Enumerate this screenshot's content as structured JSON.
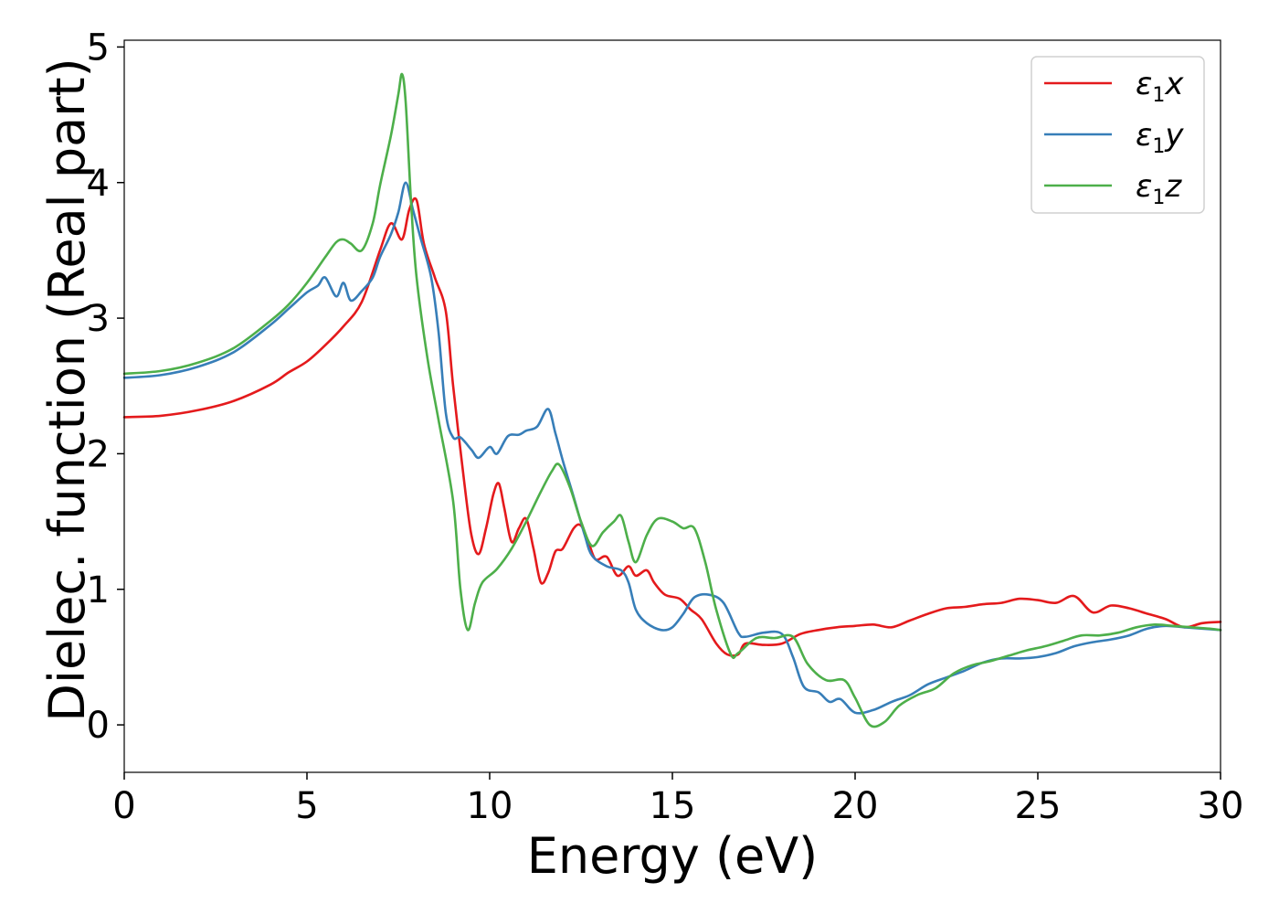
{
  "chart_data": {
    "type": "line",
    "xlabel": "Energy (eV)",
    "ylabel": "Dielec. function (Real part)",
    "xlim": [
      0,
      30
    ],
    "ylim": [
      -0.35,
      5.05
    ],
    "xticks": [
      0,
      5,
      10,
      15,
      20,
      25,
      30
    ],
    "yticks": [
      0,
      1,
      2,
      3,
      4,
      5
    ],
    "grid": false,
    "legend_position": "top-right",
    "series": [
      {
        "name": "ε₁x",
        "legend_main": "ε",
        "legend_sub": "1",
        "legend_var": "x",
        "color": "#e41a1c",
        "points": [
          [
            0,
            2.27
          ],
          [
            1,
            2.28
          ],
          [
            2,
            2.32
          ],
          [
            3,
            2.39
          ],
          [
            4,
            2.51
          ],
          [
            4.5,
            2.6
          ],
          [
            5,
            2.68
          ],
          [
            5.5,
            2.8
          ],
          [
            6,
            2.94
          ],
          [
            6.5,
            3.12
          ],
          [
            7,
            3.5
          ],
          [
            7.3,
            3.7
          ],
          [
            7.6,
            3.58
          ],
          [
            7.8,
            3.8
          ],
          [
            8,
            3.87
          ],
          [
            8.2,
            3.55
          ],
          [
            8.5,
            3.3
          ],
          [
            8.8,
            3.05
          ],
          [
            9,
            2.5
          ],
          [
            9.3,
            1.8
          ],
          [
            9.5,
            1.4
          ],
          [
            9.7,
            1.26
          ],
          [
            9.9,
            1.45
          ],
          [
            10.1,
            1.7
          ],
          [
            10.25,
            1.78
          ],
          [
            10.4,
            1.6
          ],
          [
            10.6,
            1.35
          ],
          [
            10.8,
            1.45
          ],
          [
            11,
            1.52
          ],
          [
            11.2,
            1.3
          ],
          [
            11.4,
            1.05
          ],
          [
            11.6,
            1.12
          ],
          [
            11.8,
            1.28
          ],
          [
            12,
            1.3
          ],
          [
            12.3,
            1.45
          ],
          [
            12.5,
            1.47
          ],
          [
            12.7,
            1.35
          ],
          [
            12.9,
            1.22
          ],
          [
            13.2,
            1.24
          ],
          [
            13.5,
            1.1
          ],
          [
            13.8,
            1.17
          ],
          [
            14,
            1.1
          ],
          [
            14.3,
            1.14
          ],
          [
            14.5,
            1.05
          ],
          [
            14.8,
            0.96
          ],
          [
            15.2,
            0.93
          ],
          [
            15.5,
            0.85
          ],
          [
            15.8,
            0.78
          ],
          [
            16.2,
            0.6
          ],
          [
            16.5,
            0.52
          ],
          [
            16.8,
            0.52
          ],
          [
            17,
            0.6
          ],
          [
            17.5,
            0.59
          ],
          [
            18,
            0.6
          ],
          [
            18.5,
            0.67
          ],
          [
            19,
            0.7
          ],
          [
            19.5,
            0.72
          ],
          [
            20,
            0.73
          ],
          [
            20.5,
            0.74
          ],
          [
            21,
            0.72
          ],
          [
            21.5,
            0.77
          ],
          [
            22,
            0.82
          ],
          [
            22.5,
            0.86
          ],
          [
            23,
            0.87
          ],
          [
            23.5,
            0.89
          ],
          [
            24,
            0.9
          ],
          [
            24.5,
            0.93
          ],
          [
            25,
            0.92
          ],
          [
            25.5,
            0.9
          ],
          [
            26,
            0.95
          ],
          [
            26.5,
            0.83
          ],
          [
            27,
            0.88
          ],
          [
            27.5,
            0.86
          ],
          [
            28,
            0.82
          ],
          [
            28.5,
            0.78
          ],
          [
            29,
            0.72
          ],
          [
            29.5,
            0.75
          ],
          [
            30,
            0.76
          ]
        ]
      },
      {
        "name": "ε₁y",
        "legend_main": "ε",
        "legend_sub": "1",
        "legend_var": "y",
        "color": "#377eb8",
        "points": [
          [
            0,
            2.56
          ],
          [
            1,
            2.58
          ],
          [
            2,
            2.64
          ],
          [
            3,
            2.75
          ],
          [
            4,
            2.95
          ],
          [
            4.5,
            3.07
          ],
          [
            5,
            3.19
          ],
          [
            5.3,
            3.24
          ],
          [
            5.5,
            3.3
          ],
          [
            5.8,
            3.16
          ],
          [
            6,
            3.26
          ],
          [
            6.2,
            3.13
          ],
          [
            6.5,
            3.2
          ],
          [
            6.8,
            3.3
          ],
          [
            7,
            3.45
          ],
          [
            7.3,
            3.62
          ],
          [
            7.5,
            3.78
          ],
          [
            7.7,
            4.0
          ],
          [
            7.9,
            3.8
          ],
          [
            8.1,
            3.6
          ],
          [
            8.4,
            3.3
          ],
          [
            8.6,
            2.9
          ],
          [
            8.8,
            2.3
          ],
          [
            9,
            2.12
          ],
          [
            9.2,
            2.12
          ],
          [
            9.5,
            2.03
          ],
          [
            9.7,
            1.97
          ],
          [
            10,
            2.05
          ],
          [
            10.2,
            2.0
          ],
          [
            10.5,
            2.13
          ],
          [
            10.8,
            2.14
          ],
          [
            11,
            2.17
          ],
          [
            11.3,
            2.2
          ],
          [
            11.6,
            2.33
          ],
          [
            11.8,
            2.15
          ],
          [
            12,
            1.95
          ],
          [
            12.3,
            1.68
          ],
          [
            12.6,
            1.4
          ],
          [
            12.8,
            1.25
          ],
          [
            13.2,
            1.17
          ],
          [
            13.6,
            1.14
          ],
          [
            13.8,
            1.05
          ],
          [
            14,
            0.85
          ],
          [
            14.3,
            0.75
          ],
          [
            14.7,
            0.7
          ],
          [
            15,
            0.72
          ],
          [
            15.3,
            0.82
          ],
          [
            15.6,
            0.94
          ],
          [
            16,
            0.96
          ],
          [
            16.4,
            0.9
          ],
          [
            16.8,
            0.68
          ],
          [
            17,
            0.65
          ],
          [
            17.5,
            0.68
          ],
          [
            18,
            0.67
          ],
          [
            18.3,
            0.5
          ],
          [
            18.6,
            0.28
          ],
          [
            19,
            0.24
          ],
          [
            19.3,
            0.17
          ],
          [
            19.6,
            0.19
          ],
          [
            20,
            0.09
          ],
          [
            20.5,
            0.11
          ],
          [
            21,
            0.17
          ],
          [
            21.5,
            0.22
          ],
          [
            22,
            0.3
          ],
          [
            22.5,
            0.35
          ],
          [
            23,
            0.4
          ],
          [
            23.5,
            0.46
          ],
          [
            24,
            0.49
          ],
          [
            24.5,
            0.49
          ],
          [
            25,
            0.5
          ],
          [
            25.5,
            0.53
          ],
          [
            26,
            0.58
          ],
          [
            26.5,
            0.61
          ],
          [
            27,
            0.63
          ],
          [
            27.5,
            0.66
          ],
          [
            28,
            0.71
          ],
          [
            28.5,
            0.73
          ],
          [
            29,
            0.72
          ],
          [
            29.5,
            0.71
          ],
          [
            30,
            0.7
          ]
        ]
      },
      {
        "name": "ε₁z",
        "legend_main": "ε",
        "legend_sub": "1",
        "legend_var": "z",
        "color": "#4daf4a",
        "points": [
          [
            0,
            2.59
          ],
          [
            1,
            2.61
          ],
          [
            2,
            2.67
          ],
          [
            3,
            2.78
          ],
          [
            4,
            2.98
          ],
          [
            4.5,
            3.1
          ],
          [
            5,
            3.26
          ],
          [
            5.5,
            3.45
          ],
          [
            5.8,
            3.56
          ],
          [
            6,
            3.58
          ],
          [
            6.2,
            3.55
          ],
          [
            6.5,
            3.5
          ],
          [
            6.8,
            3.7
          ],
          [
            7,
            3.98
          ],
          [
            7.3,
            4.35
          ],
          [
            7.5,
            4.65
          ],
          [
            7.6,
            4.8
          ],
          [
            7.7,
            4.6
          ],
          [
            7.85,
            3.85
          ],
          [
            8.0,
            3.3
          ],
          [
            8.3,
            2.7
          ],
          [
            8.6,
            2.25
          ],
          [
            9,
            1.65
          ],
          [
            9.2,
            1.0
          ],
          [
            9.4,
            0.7
          ],
          [
            9.6,
            0.9
          ],
          [
            9.8,
            1.05
          ],
          [
            10.2,
            1.15
          ],
          [
            10.6,
            1.3
          ],
          [
            11,
            1.5
          ],
          [
            11.4,
            1.72
          ],
          [
            11.7,
            1.87
          ],
          [
            11.9,
            1.92
          ],
          [
            12.2,
            1.75
          ],
          [
            12.5,
            1.5
          ],
          [
            12.8,
            1.32
          ],
          [
            13.1,
            1.42
          ],
          [
            13.4,
            1.5
          ],
          [
            13.6,
            1.54
          ],
          [
            13.8,
            1.35
          ],
          [
            14,
            1.2
          ],
          [
            14.3,
            1.4
          ],
          [
            14.6,
            1.52
          ],
          [
            15,
            1.5
          ],
          [
            15.3,
            1.45
          ],
          [
            15.6,
            1.45
          ],
          [
            15.9,
            1.2
          ],
          [
            16.2,
            0.85
          ],
          [
            16.6,
            0.52
          ],
          [
            16.8,
            0.53
          ],
          [
            17.3,
            0.64
          ],
          [
            17.8,
            0.64
          ],
          [
            18.3,
            0.65
          ],
          [
            18.7,
            0.45
          ],
          [
            19.2,
            0.33
          ],
          [
            19.7,
            0.33
          ],
          [
            20,
            0.2
          ],
          [
            20.4,
            0.0
          ],
          [
            20.8,
            0.02
          ],
          [
            21.2,
            0.14
          ],
          [
            21.7,
            0.22
          ],
          [
            22.2,
            0.27
          ],
          [
            22.7,
            0.38
          ],
          [
            23.2,
            0.44
          ],
          [
            23.7,
            0.47
          ],
          [
            24.2,
            0.51
          ],
          [
            24.7,
            0.55
          ],
          [
            25.2,
            0.58
          ],
          [
            25.7,
            0.62
          ],
          [
            26.2,
            0.66
          ],
          [
            26.7,
            0.66
          ],
          [
            27.2,
            0.68
          ],
          [
            27.7,
            0.72
          ],
          [
            28.2,
            0.74
          ],
          [
            28.7,
            0.73
          ],
          [
            29.2,
            0.72
          ],
          [
            29.7,
            0.71
          ],
          [
            30,
            0.7
          ]
        ]
      }
    ]
  }
}
